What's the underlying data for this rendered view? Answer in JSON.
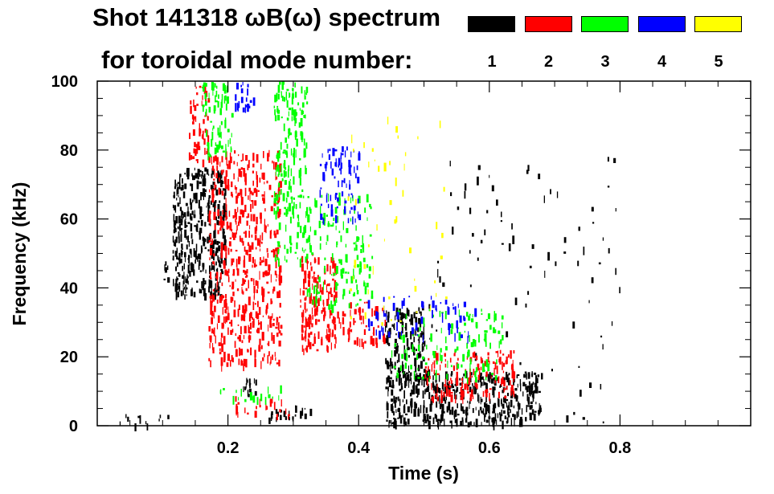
{
  "chart_data": {
    "type": "heatmap",
    "title_line1": "Shot 141318 ωB(ω) spectrum",
    "title_line2": "for toroidal mode number:",
    "xlabel": "Time (s)",
    "ylabel": "Frequency (kHz)",
    "xlim": [
      0.0,
      1.0
    ],
    "ylim": [
      0,
      100
    ],
    "x_ticks": [
      0.2,
      0.4,
      0.6,
      0.8
    ],
    "x_tick_labels": [
      "0.2",
      "0.4",
      "0.6",
      "0.8"
    ],
    "y_ticks": [
      0,
      20,
      40,
      60,
      80,
      100
    ],
    "y_tick_labels": [
      "0",
      "20",
      "40",
      "60",
      "80",
      "100"
    ],
    "legend": [
      {
        "mode": "1",
        "color": "#000000"
      },
      {
        "mode": "2",
        "color": "#ff0000"
      },
      {
        "mode": "3",
        "color": "#00ff00"
      },
      {
        "mode": "4",
        "color": "#0000ff"
      },
      {
        "mode": "5",
        "color": "#ffff00"
      }
    ],
    "series": [
      {
        "name": "n=1",
        "color": "#000000",
        "regions": [
          {
            "t": [
              0.115,
              0.195
            ],
            "f": [
              38,
              75
            ],
            "density": 1.0
          },
          {
            "t": [
              0.1,
              0.11
            ],
            "f": [
              42,
              48
            ],
            "density": 0.8
          },
          {
            "t": [
              0.22,
              0.245
            ],
            "f": [
              9,
              14
            ],
            "density": 0.9
          },
          {
            "t": [
              0.26,
              0.33
            ],
            "f": [
              2,
              6
            ],
            "density": 0.7
          },
          {
            "t": [
              0.44,
              0.5
            ],
            "f": [
              14,
              35
            ],
            "density": 0.9
          },
          {
            "t": [
              0.44,
              0.68
            ],
            "f": [
              1,
              16
            ],
            "density": 1.0
          },
          {
            "t": [
              0.03,
              0.12
            ],
            "f": [
              0,
              4
            ],
            "density": 0.25
          },
          {
            "t": [
              0.5,
              0.8
            ],
            "f": [
              0,
              80
            ],
            "density": 0.03
          }
        ]
      },
      {
        "name": "n=2",
        "color": "#ff0000",
        "regions": [
          {
            "t": [
              0.14,
              0.17
            ],
            "f": [
              76,
              100
            ],
            "density": 0.6
          },
          {
            "t": [
              0.17,
              0.28
            ],
            "f": [
              18,
              80
            ],
            "density": 0.65
          },
          {
            "t": [
              0.31,
              0.365
            ],
            "f": [
              22,
              50
            ],
            "density": 0.9
          },
          {
            "t": [
              0.36,
              0.44
            ],
            "f": [
              24,
              36
            ],
            "density": 0.5
          },
          {
            "t": [
              0.5,
              0.64
            ],
            "f": [
              8,
              22
            ],
            "density": 0.6
          },
          {
            "t": [
              0.21,
              0.3
            ],
            "f": [
              3,
              9
            ],
            "density": 0.35
          }
        ]
      },
      {
        "name": "n=3",
        "color": "#00ff00",
        "regions": [
          {
            "t": [
              0.16,
              0.21
            ],
            "f": [
              78,
              100
            ],
            "density": 0.55
          },
          {
            "t": [
              0.27,
              0.32
            ],
            "f": [
              48,
              100
            ],
            "density": 0.6
          },
          {
            "t": [
              0.32,
              0.42
            ],
            "f": [
              35,
              68
            ],
            "density": 0.35
          },
          {
            "t": [
              0.45,
              0.62
            ],
            "f": [
              14,
              34
            ],
            "density": 0.3
          },
          {
            "t": [
              0.18,
              0.28
            ],
            "f": [
              7,
              12
            ],
            "density": 0.3
          }
        ]
      },
      {
        "name": "n=4",
        "color": "#0000ff",
        "regions": [
          {
            "t": [
              0.21,
              0.24
            ],
            "f": [
              92,
              100
            ],
            "density": 0.7
          },
          {
            "t": [
              0.34,
              0.4
            ],
            "f": [
              60,
              82
            ],
            "density": 0.5
          },
          {
            "t": [
              0.41,
              0.58
            ],
            "f": [
              26,
              38
            ],
            "density": 0.25
          }
        ]
      },
      {
        "name": "n=5",
        "color": "#ffff00",
        "regions": [
          {
            "t": [
              0.38,
              0.55
            ],
            "f": [
              30,
              90
            ],
            "density": 0.04
          }
        ]
      }
    ]
  }
}
